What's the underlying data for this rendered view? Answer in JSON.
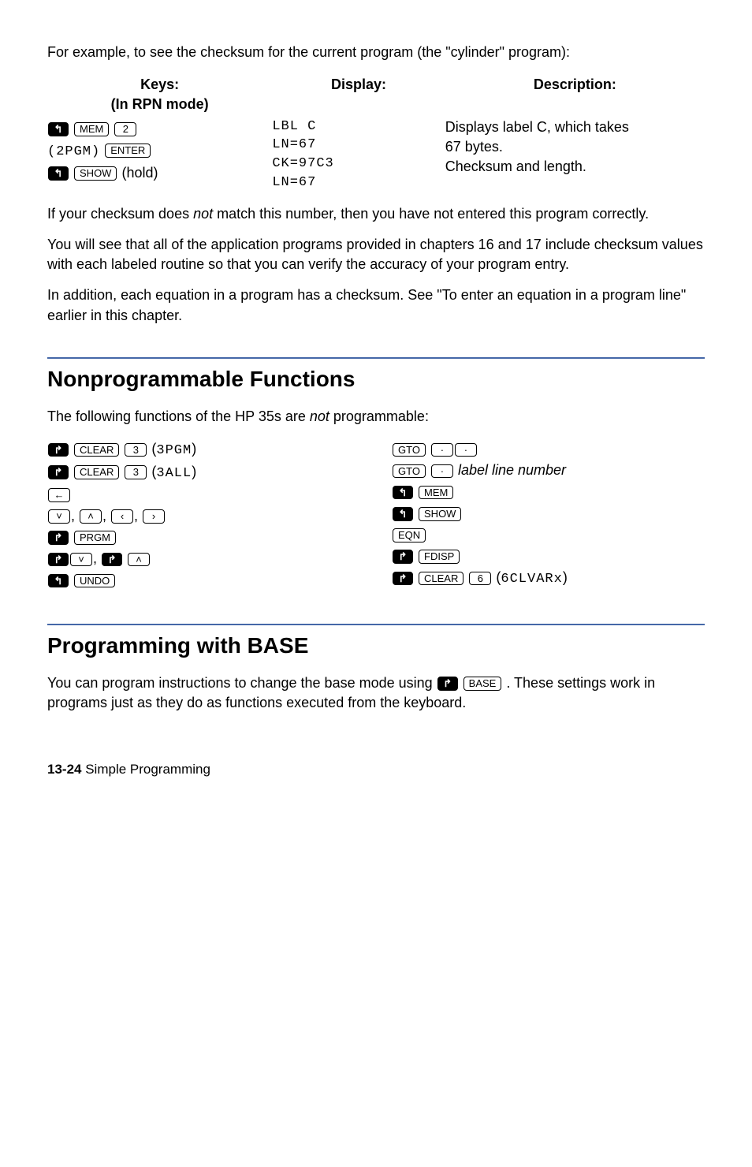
{
  "intro": "For example, to see the checksum for the current program (the \"cylinder\" program):",
  "table": {
    "headers": {
      "keys": "Keys:",
      "keys_sub": "(In RPN mode)",
      "display": "Display:",
      "desc": "Description:"
    },
    "row1": {
      "disp1": "LBL C",
      "desc1": "Displays label C, which takes",
      "disp2": "LN=67",
      "desc2": "67 bytes.",
      "disp3": "CK=97C3",
      "desc3": "Checksum and length.",
      "disp4": "LN=67",
      "k_mem": "MEM",
      "k_2": "2",
      "k_2pgm_a": "(",
      "k_2pgm_b": "2PGM",
      "k_2pgm_c": ")",
      "k_enter": "ENTER",
      "k_show": "SHOW",
      "k_hold": " (hold)"
    }
  },
  "para1a": "If your checksum does ",
  "para1_not": "not",
  "para1b": " match this number, then you have not entered this program correctly.",
  "para2": "You will see that all of the application programs provided in chapters 16 and  17 include checksum values with each labeled routine so that you can verify the accuracy of your program entry.",
  "para3": "In addition, each equation in a program has a checksum. See \"To enter an equation in a program line\" earlier in this chapter.",
  "heading1": "Nonprogrammable Functions",
  "np_intro_a": "The following functions of the HP 35s are ",
  "np_intro_not": "not",
  "np_intro_b": " programmable:",
  "keys": {
    "clear": "CLEAR",
    "three": "3",
    "six": "6",
    "dot": "·",
    "prgm": "PRGM",
    "undo": "UNDO",
    "gto": "GTO",
    "mem": "MEM",
    "show": "SHOW",
    "eqn": "EQN",
    "fdisp": "FDISP",
    "base": "BASE",
    "back": "←",
    "down": "˅",
    "up": "˄",
    "left": "‹",
    "right": "›",
    "shift_r": "↱",
    "shift_l": "↰"
  },
  "labels": {
    "l3pgm": "3PGM",
    "l3all": "3ALL",
    "l6clvarx": "6CLVARx",
    "label_line": "label line number"
  },
  "heading2": "Programming with BASE",
  "base_a": "You can program instructions to change the base mode using ",
  "base_b": ". These settings work in programs just as they do as functions executed from the keyboard.",
  "footer_page": "13-24",
  "footer_title": "  Simple Programming"
}
